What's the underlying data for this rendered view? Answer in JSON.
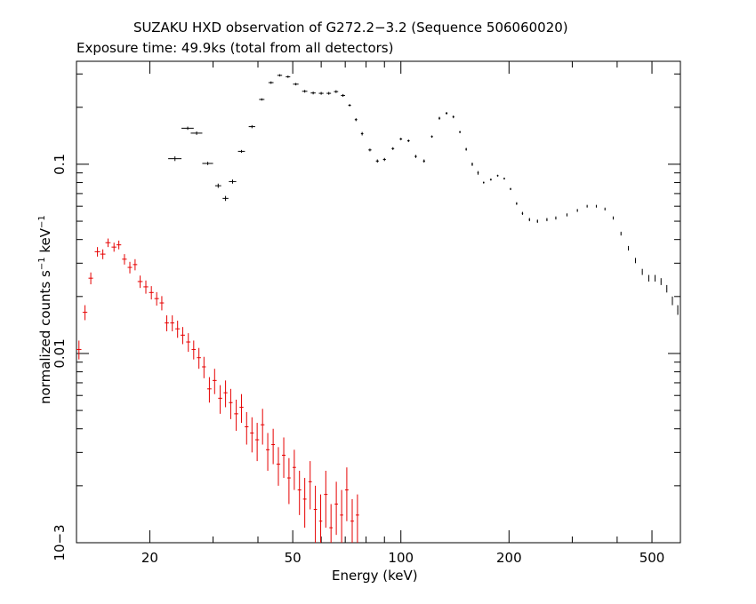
{
  "chart_data": {
    "type": "scatter",
    "title": "SUZAKU HXD observation of G272.2−3.2 (Sequence 506060020)",
    "subtitle": "Exposure time: 49.9ks (total from all detectors)",
    "xlabel": "Energy (keV)",
    "ylabel": {
      "part1": "normalized counts s",
      "sup1": "−1",
      "part2": " keV",
      "sup2": "−1"
    },
    "x_scale": "log",
    "y_scale": "log",
    "xlim": [
      12.5,
      600
    ],
    "ylim": [
      0.001,
      0.35
    ],
    "x_ticks": [
      {
        "value": 20,
        "label": "20"
      },
      {
        "value": 50,
        "label": "50"
      },
      {
        "value": 100,
        "label": "100"
      },
      {
        "value": 200,
        "label": "200"
      },
      {
        "value": 500,
        "label": "500"
      }
    ],
    "y_ticks": [
      {
        "value": 0.001,
        "label": "10−3"
      },
      {
        "value": 0.01,
        "label": "0.01"
      },
      {
        "value": 0.1,
        "label": "0.1"
      }
    ],
    "series": [
      {
        "color": "#000000",
        "x": [
          23.5,
          25.5,
          27.0,
          29.0,
          31.0,
          32.5,
          34.0,
          36.0,
          38.5,
          41.0,
          43.5,
          46.0,
          48.5,
          51.0,
          54.0,
          57.0,
          60.0,
          63.0,
          66.0,
          69.0,
          72.0,
          75.0,
          78.0,
          82.0,
          86.0,
          90.0,
          95.0,
          100.0,
          105.0,
          110.0,
          116.0,
          122.0,
          128.0,
          134.0,
          140.0,
          146.0,
          152.0,
          158.0,
          164.0,
          170.0,
          178.0,
          186.0,
          194.0,
          202.0,
          210.0,
          218.0,
          228.0,
          240.0,
          255.0,
          270.0,
          290.0,
          310.0,
          330.0,
          350.0,
          370.0,
          390.0,
          410.0,
          430.0,
          450.0,
          470.0,
          490.0,
          510.0,
          530.0,
          550.0,
          570.0,
          590.0
        ],
        "y": [
          0.107,
          0.155,
          0.146,
          0.101,
          0.077,
          0.066,
          0.081,
          0.117,
          0.158,
          0.22,
          0.27,
          0.295,
          0.29,
          0.265,
          0.243,
          0.238,
          0.237,
          0.237,
          0.242,
          0.231,
          0.205,
          0.172,
          0.145,
          0.119,
          0.104,
          0.106,
          0.121,
          0.136,
          0.133,
          0.11,
          0.104,
          0.14,
          0.175,
          0.186,
          0.178,
          0.148,
          0.12,
          0.1,
          0.09,
          0.08,
          0.083,
          0.087,
          0.084,
          0.074,
          0.062,
          0.055,
          0.051,
          0.05,
          0.051,
          0.052,
          0.054,
          0.057,
          0.06,
          0.06,
          0.058,
          0.052,
          0.043,
          0.036,
          0.031,
          0.027,
          0.025,
          0.025,
          0.024,
          0.022,
          0.019,
          0.017
        ],
        "xerr": [
          1.0,
          1.0,
          1.0,
          1.0,
          0.6,
          0.6,
          0.8,
          0.8,
          0.8,
          0.7,
          0.7,
          0.7,
          0.7,
          0.9,
          0.9,
          0.9,
          0.9,
          0.9,
          0.9,
          0.9,
          0.6,
          0.6,
          0.6,
          0.8,
          0.8,
          0.8,
          0.8,
          0.8,
          0.8,
          0.8,
          0.8,
          0.8,
          0.8,
          0.8,
          0.8,
          0.8,
          0.8,
          0.8,
          0.8,
          0.8,
          1.0,
          1.0,
          1.0,
          1.0,
          1.0,
          1.0,
          1.0,
          1.0,
          1.0,
          1.0,
          1.0,
          1.0,
          1.0,
          1.0,
          1.0,
          1.0,
          1.0,
          1.0,
          1.0,
          1.0,
          1.0,
          1.0,
          1.0,
          1.0,
          1.0,
          1.0
        ],
        "yerr": [
          0.003,
          0.003,
          0.003,
          0.002,
          0.002,
          0.002,
          0.002,
          0.002,
          0.003,
          0.003,
          0.004,
          0.004,
          0.004,
          0.004,
          0.004,
          0.004,
          0.004,
          0.004,
          0.004,
          0.004,
          0.003,
          0.003,
          0.003,
          0.002,
          0.002,
          0.002,
          0.002,
          0.002,
          0.002,
          0.002,
          0.002,
          0.002,
          0.003,
          0.003,
          0.003,
          0.002,
          0.002,
          0.002,
          0.002,
          0.001,
          0.001,
          0.001,
          0.001,
          0.001,
          0.001,
          0.001,
          0.001,
          0.001,
          0.001,
          0.001,
          0.001,
          0.001,
          0.001,
          0.001,
          0.001,
          0.001,
          0.001,
          0.001,
          0.001,
          0.001,
          0.001,
          0.001,
          0.001,
          0.001,
          0.001,
          0.001
        ]
      },
      {
        "color": "#e60000",
        "x": [
          12.7,
          13.2,
          13.7,
          14.3,
          14.8,
          15.3,
          15.9,
          16.4,
          17.0,
          17.6,
          18.2,
          18.8,
          19.5,
          20.2,
          20.9,
          21.6,
          22.3,
          23.1,
          23.9,
          24.7,
          25.6,
          26.5,
          27.4,
          28.3,
          29.3,
          30.3,
          31.4,
          32.5,
          33.6,
          34.8,
          36.0,
          37.2,
          38.5,
          39.8,
          41.2,
          42.6,
          44.1,
          45.6,
          47.2,
          48.8,
          50.5,
          52.2,
          54.0,
          55.9,
          57.8,
          59.8,
          61.8,
          63.9,
          66.1,
          68.4,
          70.7,
          73.2,
          75.7
        ],
        "y": [
          0.0105,
          0.0165,
          0.025,
          0.0345,
          0.0335,
          0.0385,
          0.0365,
          0.0375,
          0.0315,
          0.0285,
          0.0295,
          0.024,
          0.0225,
          0.021,
          0.0195,
          0.0185,
          0.0145,
          0.0145,
          0.0135,
          0.0125,
          0.0115,
          0.0105,
          0.0095,
          0.0085,
          0.0065,
          0.0072,
          0.0058,
          0.0062,
          0.0055,
          0.0048,
          0.0052,
          0.0041,
          0.0038,
          0.0035,
          0.0042,
          0.0031,
          0.0033,
          0.0026,
          0.0029,
          0.0022,
          0.0025,
          0.0019,
          0.0017,
          0.0021,
          0.0015,
          0.0013,
          0.0018,
          0.0012,
          0.0016,
          0.0014,
          0.0019,
          0.0013,
          0.0014
        ],
        "xerr": [
          0.2,
          0.2,
          0.2,
          0.25,
          0.25,
          0.25,
          0.25,
          0.25,
          0.25,
          0.25,
          0.25,
          0.3,
          0.3,
          0.3,
          0.3,
          0.3,
          0.3,
          0.3,
          0.35,
          0.35,
          0.35,
          0.35,
          0.35,
          0.35,
          0.4,
          0.4,
          0.4,
          0.4,
          0.4,
          0.45,
          0.45,
          0.45,
          0.45,
          0.5,
          0.5,
          0.5,
          0.5,
          0.55,
          0.55,
          0.55,
          0.55,
          0.6,
          0.6,
          0.6,
          0.6,
          0.6,
          0.7,
          0.7,
          0.7,
          0.7,
          0.8,
          0.8,
          0.8
        ],
        "yerr": [
          0.0012,
          0.0015,
          0.0018,
          0.002,
          0.002,
          0.002,
          0.002,
          0.002,
          0.002,
          0.002,
          0.002,
          0.0018,
          0.0018,
          0.0017,
          0.0016,
          0.0016,
          0.0014,
          0.0014,
          0.0014,
          0.0013,
          0.0013,
          0.0012,
          0.0012,
          0.0011,
          0.001,
          0.0011,
          0.001,
          0.001,
          0.001,
          0.0009,
          0.0009,
          0.0008,
          0.0008,
          0.0008,
          0.0009,
          0.0007,
          0.0007,
          0.0006,
          0.0007,
          0.0006,
          0.0006,
          0.0005,
          0.0005,
          0.0006,
          0.0005,
          0.0005,
          0.0006,
          0.0004,
          0.0005,
          0.0005,
          0.0006,
          0.0004,
          0.0004
        ]
      }
    ]
  }
}
